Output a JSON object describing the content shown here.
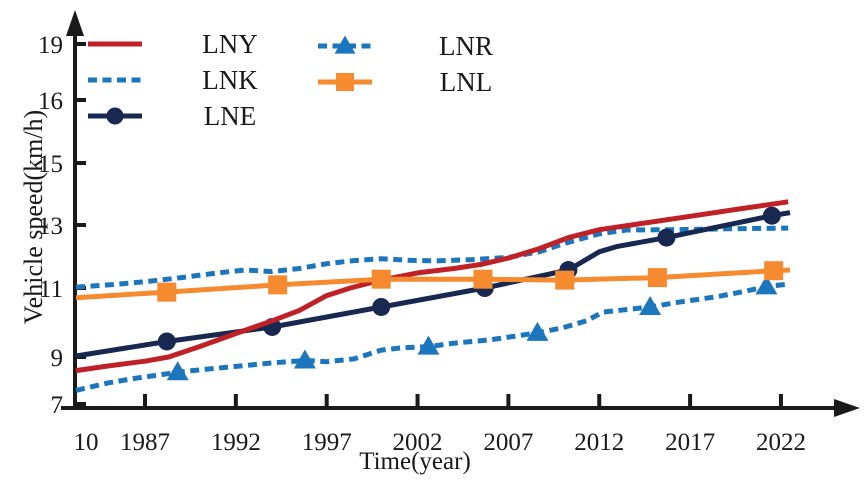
{
  "chart_data": {
    "type": "line",
    "title": "",
    "xlabel": "Time(year)",
    "ylabel": "Vehicle speed(km/h)",
    "x_origin_label": "10",
    "x_tick_labels": [
      "1987",
      "1992",
      "1997",
      "2002",
      "2007",
      "2012",
      "2017",
      "2022"
    ],
    "y_tick_labels": [
      "7",
      "9",
      "11",
      "13",
      "15",
      "16",
      "19"
    ],
    "x_range_years": [
      1983.2,
      2022.5
    ],
    "axis_color": "#1a1a1a",
    "grid": "off",
    "legend_position": "top-left, two columns",
    "series": [
      {
        "name": "LNY",
        "color": "#c02127",
        "style": "solid",
        "marker": "none",
        "points": [
          [
            1983.2,
            8.42
          ],
          [
            1985,
            8.62
          ],
          [
            1987,
            8.82
          ],
          [
            1988.3,
            9.0
          ],
          [
            1990,
            9.3
          ],
          [
            1992,
            9.68
          ],
          [
            1994,
            10.05
          ],
          [
            1995.5,
            10.35
          ],
          [
            1997,
            10.78
          ],
          [
            1998.3,
            11.0
          ],
          [
            2000,
            11.25
          ],
          [
            2002,
            11.48
          ],
          [
            2004,
            11.62
          ],
          [
            2005.5,
            11.75
          ],
          [
            2007,
            11.95
          ],
          [
            2008.7,
            12.25
          ],
          [
            2010.3,
            12.6
          ],
          [
            2012,
            12.85
          ],
          [
            2014,
            13.02
          ],
          [
            2017,
            13.28
          ],
          [
            2019.5,
            13.5
          ],
          [
            2022.4,
            13.75
          ]
        ],
        "markers": []
      },
      {
        "name": "LNK",
        "color": "#1c76bd",
        "style": "dashed",
        "marker": "none",
        "points": [
          [
            1983.2,
            11.03
          ],
          [
            1985,
            11.1
          ],
          [
            1987,
            11.2
          ],
          [
            1989,
            11.33
          ],
          [
            1991,
            11.48
          ],
          [
            1992.5,
            11.57
          ],
          [
            1994,
            11.52
          ],
          [
            1995.5,
            11.62
          ],
          [
            1997,
            11.77
          ],
          [
            1998.5,
            11.87
          ],
          [
            2000,
            11.93
          ],
          [
            2001.5,
            11.88
          ],
          [
            2003,
            11.86
          ],
          [
            2005,
            11.9
          ],
          [
            2007,
            11.97
          ],
          [
            2008.7,
            12.15
          ],
          [
            2010,
            12.4
          ],
          [
            2012,
            12.72
          ],
          [
            2013.5,
            12.84
          ],
          [
            2016,
            12.85
          ],
          [
            2019,
            12.88
          ],
          [
            2022.4,
            12.9
          ]
        ],
        "markers": []
      },
      {
        "name": "LNE",
        "color": "#182850",
        "style": "solid",
        "marker": "circle",
        "points": [
          [
            1983.2,
            9.03
          ],
          [
            1988.2,
            9.45
          ],
          [
            1994,
            9.87
          ],
          [
            2000,
            10.45
          ],
          [
            2005.7,
            11.0
          ],
          [
            2010.3,
            11.57
          ],
          [
            2012,
            12.15
          ],
          [
            2013,
            12.32
          ],
          [
            2015.7,
            12.6
          ],
          [
            2021.5,
            13.3
          ],
          [
            2022.5,
            13.4
          ]
        ],
        "markers": [
          [
            1988.2,
            9.45
          ],
          [
            1994,
            9.87
          ],
          [
            2000,
            10.45
          ],
          [
            2005.7,
            11.0
          ],
          [
            2010.3,
            11.57
          ],
          [
            2015.7,
            12.6
          ],
          [
            2021.5,
            13.3
          ]
        ]
      },
      {
        "name": "LNR",
        "color": "#1c76bd",
        "style": "dashed",
        "marker": "triangle",
        "points": [
          [
            1983.2,
            7.58
          ],
          [
            1985,
            7.9
          ],
          [
            1986.5,
            8.1
          ],
          [
            1988.8,
            8.35
          ],
          [
            1990,
            8.45
          ],
          [
            1992,
            8.6
          ],
          [
            1994,
            8.75
          ],
          [
            1995.8,
            8.85
          ],
          [
            1997,
            8.8
          ],
          [
            1998.5,
            8.92
          ],
          [
            2000,
            9.2
          ],
          [
            2001.2,
            9.27
          ],
          [
            2002.6,
            9.3
          ],
          [
            2004,
            9.4
          ],
          [
            2006,
            9.5
          ],
          [
            2008.6,
            9.7
          ],
          [
            2010,
            9.85
          ],
          [
            2011.3,
            10.05
          ],
          [
            2012.2,
            10.3
          ],
          [
            2014.8,
            10.45
          ],
          [
            2016.5,
            10.6
          ],
          [
            2018.5,
            10.75
          ],
          [
            2020,
            10.9
          ],
          [
            2021.2,
            11.05
          ],
          [
            2022.4,
            11.12
          ]
        ],
        "markers": [
          [
            1988.8,
            8.35
          ],
          [
            1995.8,
            8.85
          ],
          [
            2002.6,
            9.3
          ],
          [
            2008.6,
            9.7
          ],
          [
            2014.8,
            10.45
          ],
          [
            2021.2,
            11.05
          ]
        ]
      },
      {
        "name": "LNL",
        "color": "#f68a2e",
        "style": "solid",
        "marker": "square",
        "points": [
          [
            1983.2,
            10.72
          ],
          [
            1988.2,
            10.88
          ],
          [
            1994.3,
            11.1
          ],
          [
            2000,
            11.28
          ],
          [
            2005.6,
            11.28
          ],
          [
            2010.1,
            11.25
          ],
          [
            2015.2,
            11.33
          ],
          [
            2021.6,
            11.55
          ],
          [
            2022.5,
            11.57
          ]
        ],
        "markers": [
          [
            1988.2,
            10.88
          ],
          [
            1994.3,
            11.1
          ],
          [
            2000,
            11.28
          ],
          [
            2005.6,
            11.28
          ],
          [
            2010.1,
            11.25
          ],
          [
            2015.2,
            11.33
          ],
          [
            2021.6,
            11.55
          ]
        ]
      }
    ]
  }
}
